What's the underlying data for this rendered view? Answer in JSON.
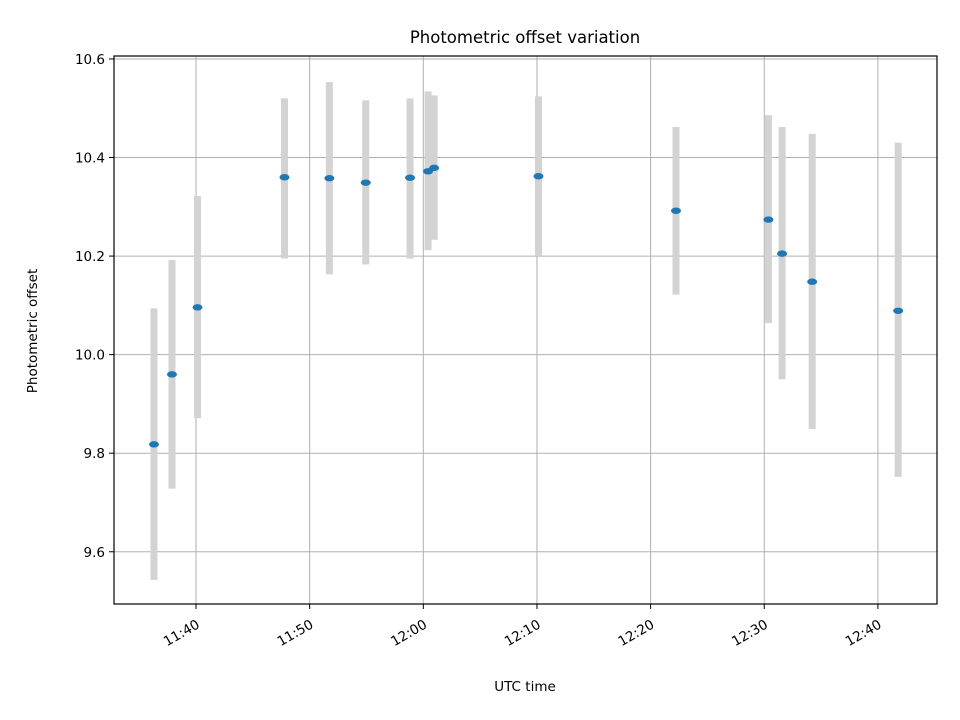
{
  "chart_data": {
    "type": "scatter",
    "title": "Photometric offset variation",
    "xlabel": "UTC time",
    "ylabel": "Photometric offset",
    "x_axis_type": "time",
    "xlim": [
      "11:32:47",
      "12:45:12"
    ],
    "ylim": [
      9.494,
      10.606
    ],
    "grid": true,
    "xticks": [
      {
        "value": "11:40",
        "label": "11:40"
      },
      {
        "value": "11:50",
        "label": "11:50"
      },
      {
        "value": "12:00",
        "label": "12:00"
      },
      {
        "value": "12:10",
        "label": "12:10"
      },
      {
        "value": "12:20",
        "label": "12:20"
      },
      {
        "value": "12:30",
        "label": "12:30"
      },
      {
        "value": "12:40",
        "label": "12:40"
      }
    ],
    "yticks": [
      {
        "value": 9.6,
        "label": "9.6"
      },
      {
        "value": 9.8,
        "label": "9.8"
      },
      {
        "value": 10.0,
        "label": "10.0"
      },
      {
        "value": 10.2,
        "label": "10.2"
      },
      {
        "value": 10.4,
        "label": "10.4"
      },
      {
        "value": 10.6,
        "label": "10.6"
      }
    ],
    "points": [
      {
        "x": "11:36:18",
        "y": 9.818,
        "ylow": 9.543,
        "yhigh": 10.094
      },
      {
        "x": "11:37:53",
        "y": 9.96,
        "ylow": 9.728,
        "yhigh": 10.192
      },
      {
        "x": "11:40:08",
        "y": 10.096,
        "ylow": 9.871,
        "yhigh": 10.322
      },
      {
        "x": "11:47:47",
        "y": 10.36,
        "ylow": 10.195,
        "yhigh": 10.52
      },
      {
        "x": "11:51:44",
        "y": 10.358,
        "ylow": 10.163,
        "yhigh": 10.553
      },
      {
        "x": "11:54:56",
        "y": 10.349,
        "ylow": 10.183,
        "yhigh": 10.516
      },
      {
        "x": "11:58:50",
        "y": 10.359,
        "ylow": 10.195,
        "yhigh": 10.52
      },
      {
        "x": "12:00:25",
        "y": 10.372,
        "ylow": 10.212,
        "yhigh": 10.534
      },
      {
        "x": "12:00:57",
        "y": 10.379,
        "ylow": 10.233,
        "yhigh": 10.526
      },
      {
        "x": "12:10:08",
        "y": 10.362,
        "ylow": 10.2,
        "yhigh": 10.524
      },
      {
        "x": "12:22:14",
        "y": 10.292,
        "ylow": 10.122,
        "yhigh": 10.462
      },
      {
        "x": "12:30:22",
        "y": 10.274,
        "ylow": 10.064,
        "yhigh": 10.486
      },
      {
        "x": "12:31:34",
        "y": 10.205,
        "ylow": 9.95,
        "yhigh": 10.462
      },
      {
        "x": "12:34:13",
        "y": 10.148,
        "ylow": 9.849,
        "yhigh": 10.448
      },
      {
        "x": "12:41:47",
        "y": 10.089,
        "ylow": 9.752,
        "yhigh": 10.43
      }
    ],
    "colors": {
      "marker": "#1f77b4",
      "errorbar": "#d3d3d3",
      "grid": "#b0b0b0",
      "axes": "#000000"
    }
  }
}
